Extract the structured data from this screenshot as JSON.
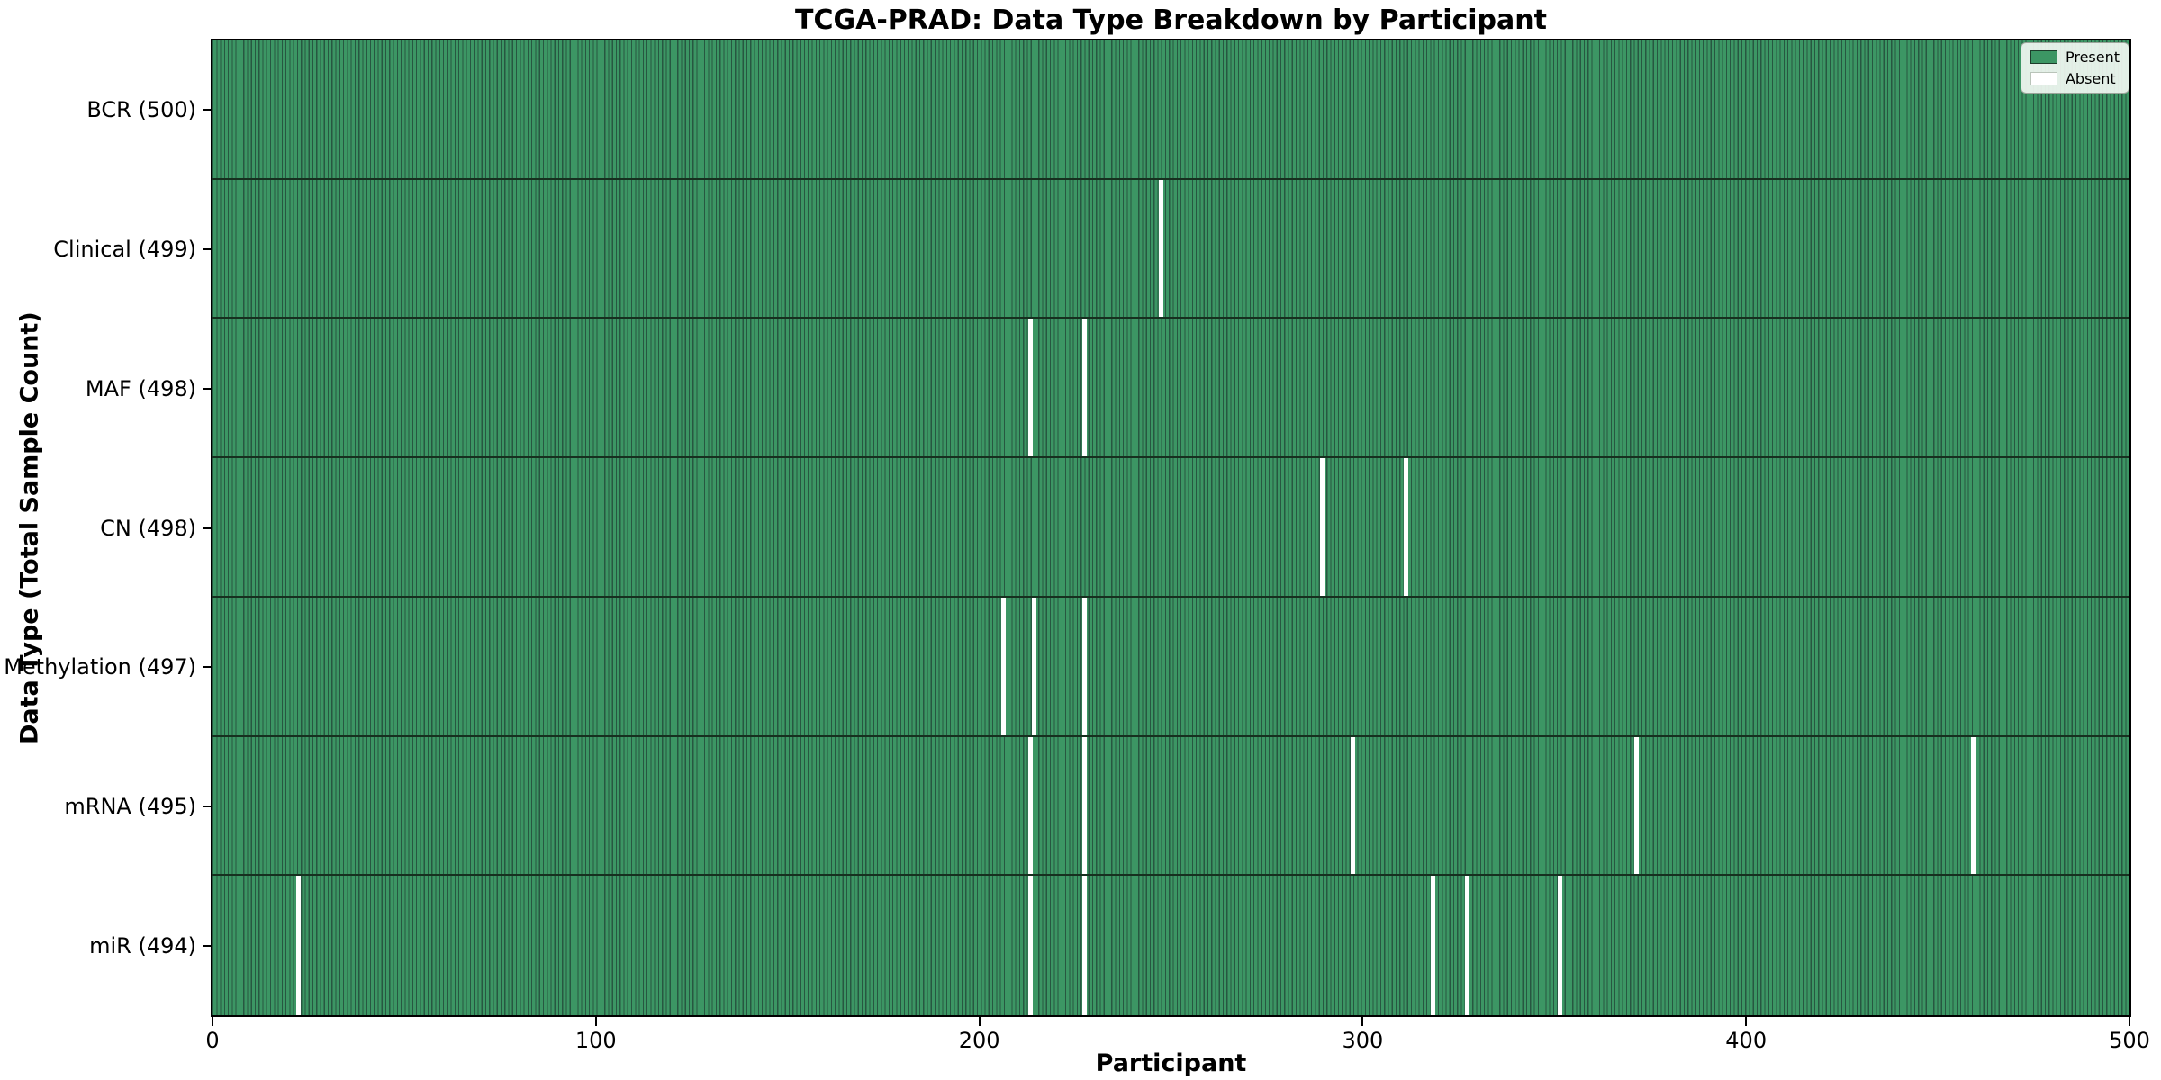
{
  "title": "TCGA-PRAD: Data Type Breakdown by Participant",
  "axes": {
    "x_label": "Participant",
    "y_label": "Data Type (Total Sample Count)"
  },
  "legend": {
    "items": [
      {
        "label": "Present",
        "color": "#3c9664",
        "border": "#1d3d2b"
      },
      {
        "label": "Absent",
        "color": "#ffffff",
        "border": "#b9c4b9"
      }
    ]
  },
  "colors": {
    "present_fill": "#3c9664",
    "bar_edge": "#275741",
    "row_separator": "#16301f",
    "absent_fill": "#ffffff",
    "axis": "#000000"
  },
  "chart_data": {
    "type": "heatmap",
    "title": "TCGA-PRAD: Data Type Breakdown by Participant",
    "xlabel": "Participant",
    "ylabel": "Data Type (Total Sample Count)",
    "x_range": [
      0,
      500
    ],
    "x_ticks": [
      0,
      100,
      200,
      300,
      400,
      500
    ],
    "total_participants": 500,
    "grid": false,
    "legend_position": "upper right",
    "legend_entries": [
      "Present",
      "Absent"
    ],
    "rows": [
      {
        "data_type": "BCR",
        "label": "BCR (500)",
        "present_count": 500,
        "absent_participants": []
      },
      {
        "data_type": "Clinical",
        "label": "Clinical (499)",
        "present_count": 499,
        "absent_participants": [
          247
        ]
      },
      {
        "data_type": "MAF",
        "label": "MAF (498)",
        "present_count": 498,
        "absent_participants": [
          213,
          227
        ]
      },
      {
        "data_type": "CN",
        "label": "CN (498)",
        "present_count": 498,
        "absent_participants": [
          289,
          311
        ]
      },
      {
        "data_type": "Methylation",
        "label": "Methylation (497)",
        "present_count": 497,
        "absent_participants": [
          206,
          214,
          227
        ]
      },
      {
        "data_type": "mRNA",
        "label": "mRNA (495)",
        "present_count": 495,
        "absent_participants": [
          213,
          227,
          297,
          371,
          459
        ]
      },
      {
        "data_type": "miR",
        "label": "miR (494)",
        "present_count": 494,
        "absent_participants": [
          22,
          213,
          227,
          318,
          327,
          351
        ]
      }
    ]
  }
}
